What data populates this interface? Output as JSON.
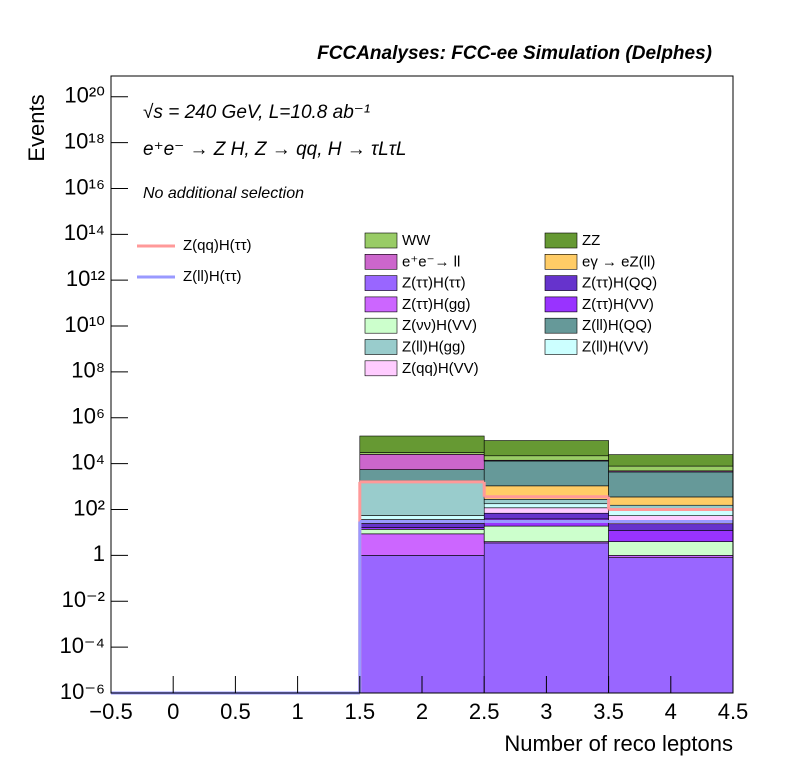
{
  "chart_data": {
    "type": "stacked_histogram",
    "title": "FCCAnalyses: FCC-ee Simulation (Delphes)",
    "annotations": [
      "√s = 240 GeV, L=10.8 ab⁻¹",
      "e⁺e⁻ → Z H, Z → qq, H → τLτL",
      "No additional selection"
    ],
    "x_label": "Number of reco leptons",
    "y_label": "Events",
    "log_y": true,
    "bins": [
      -0.5,
      0.5,
      1.5,
      2.5,
      3.5,
      4.5
    ],
    "xlim": [
      -0.5,
      4.5
    ],
    "xticks": [
      {
        "value": -0.5,
        "label": "−0.5"
      },
      0,
      0.5,
      1,
      1.5,
      2,
      2.5,
      3,
      3.5,
      4,
      4.5
    ],
    "ylim": [
      1e-06,
      8e+20
    ],
    "yticks": [
      {
        "value": 1e-06,
        "label": "10⁻⁶"
      },
      {
        "value": 0.0001,
        "label": "10⁻⁴"
      },
      {
        "value": 0.01,
        "label": "10⁻²"
      },
      1,
      {
        "value": 100.0,
        "label": "10²"
      },
      {
        "value": 10000.0,
        "label": "10⁴"
      },
      {
        "value": 1000000.0,
        "label": "10⁶"
      },
      {
        "value": 100000000.0,
        "label": "10⁸"
      },
      {
        "value": 10000000000.0,
        "label": "10¹⁰"
      },
      {
        "value": 1000000000000.0,
        "label": "10¹²"
      },
      {
        "value": 100000000000000.0,
        "label": "10¹⁴"
      },
      {
        "value": 1e+16,
        "label": "10¹⁶"
      },
      {
        "value": 1e+18,
        "label": "10¹⁸"
      },
      {
        "value": 1e+20,
        "label": "10²⁰"
      }
    ],
    "series": [
      {
        "name": "WW",
        "color": "#99cc66",
        "values": [
          0,
          0,
          5000,
          8000,
          3000
        ]
      },
      {
        "name": "ZZ",
        "color": "#669933",
        "values": [
          0,
          0,
          130000,
          80000,
          17000
        ]
      },
      {
        "name": "e⁺e⁻→ ll",
        "color": "#cc66cc",
        "values": [
          0,
          0,
          20000,
          1000,
          500
        ]
      },
      {
        "name": "eγ → eZ(ll)",
        "color": "#ffcc66",
        "values": [
          0,
          0,
          200,
          800,
          200
        ]
      },
      {
        "name": "Z(ττ)H(ττ)",
        "color": "#9966ff",
        "values": [
          0,
          0,
          1,
          3.5,
          0.8
        ]
      },
      {
        "name": "Z(ττ)H(QQ)",
        "color": "#6633cc",
        "values": [
          0,
          0,
          8,
          30,
          12
        ]
      },
      {
        "name": "Z(ττ)H(gg)",
        "color": "#cc66ff",
        "values": [
          0,
          0,
          7.7,
          0.5,
          0.2
        ]
      },
      {
        "name": "Z(ττ)H(VV)",
        "color": "#9933ff",
        "values": [
          0,
          0,
          3,
          20,
          8
        ]
      },
      {
        "name": "Z(νν)H(VV)",
        "color": "#ccffcc",
        "values": [
          0,
          0,
          5,
          15,
          3
        ]
      },
      {
        "name": "Z(ll)H(QQ)",
        "color": "#669999",
        "values": [
          0,
          0,
          3700,
          12000,
          4000
        ]
      },
      {
        "name": "Z(ll)H(gg)",
        "color": "#99cccc",
        "values": [
          0,
          0,
          1550,
          100,
          60
        ]
      },
      {
        "name": "Z(ll)H(VV)",
        "color": "#ccffff",
        "values": [
          0,
          0,
          18,
          60,
          40
        ]
      },
      {
        "name": "Z(qq)H(VV)",
        "color": "#ffccff",
        "values": [
          0,
          0,
          12,
          50,
          30
        ]
      }
    ],
    "lines": [
      {
        "name": "Z(qq)H(ττ)",
        "color": "#ff9999",
        "values": [
          0,
          0,
          1600,
          360,
          100
        ]
      },
      {
        "name": "Z(ll)H(ττ)",
        "color": "#9999ff",
        "values": [
          0,
          0,
          30,
          30,
          30
        ]
      }
    ]
  }
}
